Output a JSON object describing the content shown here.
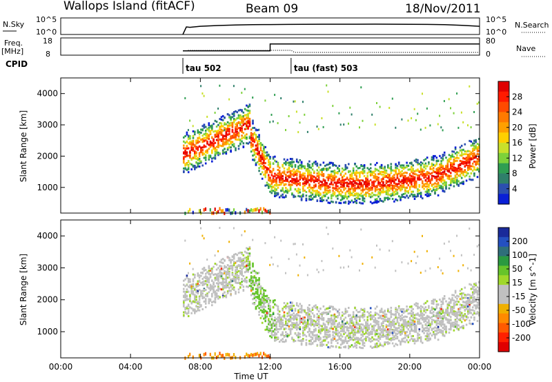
{
  "header": {
    "title": "Wallops Island (fitACF)",
    "beam": "Beam 09",
    "date": "18/Nov/2011"
  },
  "aux_labels": {
    "nsky": "N.Sky",
    "nsearch": "N.Search",
    "freq": "Freq.",
    "freq_unit": "[MHz]",
    "nave": "Nave",
    "cpid": "CPID",
    "scale_top": "10^5",
    "scale_bottom": "10^0",
    "freq_top": "18",
    "freq_bottom": "8",
    "nave_top": "80",
    "nave_bottom": "0"
  },
  "cpid_events": [
    {
      "label": "tau 502",
      "time": "07:00"
    },
    {
      "label": "tau (fast) 503",
      "time": "13:12"
    }
  ],
  "axes": {
    "x_label": "Time UT",
    "x_ticks": [
      "00:00",
      "04:00",
      "08:00",
      "12:00",
      "16:00",
      "20:00",
      "00:00"
    ],
    "y_label": "Slant Range [km]",
    "y_ticks": [
      "1000",
      "2000",
      "3000",
      "4000"
    ],
    "x_range_hours": [
      0,
      24
    ],
    "y_range_km": [
      180,
      4500
    ]
  },
  "colorbars": {
    "power": {
      "label": "Power [dB]",
      "ticks": [
        "4",
        "8",
        "12",
        "16",
        "20",
        "24",
        "28"
      ],
      "colors": [
        "#0a1fd6",
        "#2c4fb0",
        "#2f7f6a",
        "#2f9e52",
        "#7dd13a",
        "#c9e02a",
        "#ffd000",
        "#ffa000",
        "#ff7a00",
        "#ff4a00",
        "#ff1a00",
        "#e00000"
      ]
    },
    "velocity": {
      "label": "Velocity [m s^-1]",
      "ticks": [
        "200",
        "100",
        "50",
        "15",
        "-15",
        "-50",
        "-100",
        "-200"
      ],
      "colors": [
        "#1a2a9a",
        "#2450c0",
        "#2f6f7a",
        "#2a9a40",
        "#66c42a",
        "#a0d82a",
        "#c0c0c0",
        "#c0c0c0",
        "#f0b000",
        "#ff8a00",
        "#ff5a00",
        "#ff2000",
        "#e00000"
      ]
    }
  },
  "chart_data": [
    {
      "type": "line",
      "title": "N.Sky / N.Search",
      "x_units": "hours UT",
      "series": [
        {
          "name": "N.Sky",
          "x": [
            7.0,
            7.2,
            7.4,
            8,
            9,
            10,
            11,
            12,
            13,
            14,
            15,
            16,
            17,
            18,
            19,
            20,
            21,
            22,
            23,
            24
          ],
          "values": [
            1,
            200,
            150,
            300,
            500,
            700,
            900,
            1000,
            1100,
            1200,
            1300,
            1250,
            1300,
            1350,
            1300,
            1200,
            1100,
            900,
            600,
            300
          ]
        }
      ],
      "ylim_log10": [
        0,
        5
      ]
    },
    {
      "type": "line",
      "title": "Freq. / Nave",
      "series": [
        {
          "name": "Freq.",
          "x": [
            7.0,
            7.3,
            12.0,
            12.0,
            24.0
          ],
          "values": [
            10.5,
            10.5,
            10.5,
            14.5,
            14.5
          ]
        }
      ],
      "ylim": [
        8,
        18
      ]
    },
    {
      "type": "heatmap",
      "title": "Power [dB]",
      "note": "Scatter echo power versus time and slant range",
      "features": [
        {
          "name": "pre-noon band",
          "time": [
            7.0,
            10.5
          ],
          "range_km": [
            1700,
            3000
          ],
          "power_db": [
            12,
            28
          ]
        },
        {
          "name": "main band",
          "time": [
            10.5,
            23.0
          ],
          "range_km": [
            900,
            2000
          ],
          "power_db": [
            16,
            30
          ]
        },
        {
          "name": "dusk band",
          "time": [
            21.5,
            24.0
          ],
          "range_km": [
            1500,
            2400
          ],
          "power_db": [
            20,
            30
          ]
        },
        {
          "name": "near-range clutter",
          "time": [
            7.0,
            12.0
          ],
          "range_km": [
            180,
            400
          ],
          "power_db": [
            8,
            30
          ]
        }
      ],
      "clim": [
        0,
        30
      ]
    },
    {
      "type": "heatmap",
      "title": "Velocity [m s^-1]",
      "note": "Line-of-sight Doppler velocity versus time and slant range",
      "features": [
        {
          "name": "ground scatter",
          "time": [
            7.0,
            24.0
          ],
          "range_km": [
            900,
            3200
          ],
          "velocity": [
            -15,
            15
          ]
        },
        {
          "name": "green streak",
          "time": [
            10.5,
            12.5
          ],
          "range_km": [
            1000,
            3300
          ],
          "velocity": [
            15,
            50
          ]
        },
        {
          "name": "near-range echoes",
          "time": [
            7.0,
            12.0
          ],
          "range_km": [
            180,
            400
          ],
          "velocity": [
            -50,
            -15
          ]
        }
      ],
      "clim": [
        -200,
        200
      ]
    }
  ]
}
